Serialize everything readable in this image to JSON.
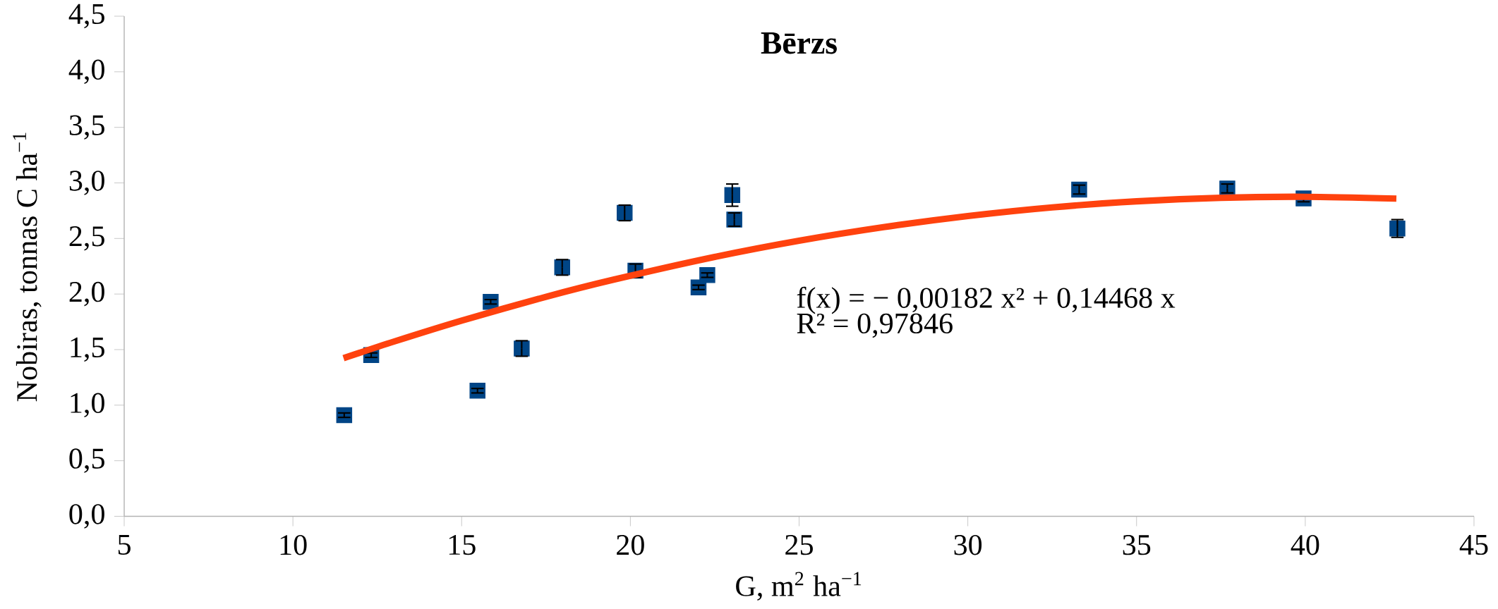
{
  "chart_data": {
    "type": "scatter",
    "title": "Bērzs",
    "xlabel": "G, m$^{2}$ ha$^{−1}$",
    "ylabel": "Nobiras, tonnas C ha$^{−1}$",
    "xlim": [
      5,
      45
    ],
    "xticks": [
      5,
      10,
      15,
      20,
      25,
      30,
      35,
      40,
      45
    ],
    "ylim": [
      0,
      4.5
    ],
    "yticks": [
      {
        "value": 0,
        "label": "0,0"
      },
      {
        "value": 0.5,
        "label": "0,5"
      },
      {
        "value": 1,
        "label": "1,0"
      },
      {
        "value": 1.5,
        "label": "1,5"
      },
      {
        "value": 2,
        "label": "2,0"
      },
      {
        "value": 2.5,
        "label": "2,5"
      },
      {
        "value": 3,
        "label": "3,0"
      },
      {
        "value": 3.5,
        "label": "3,5"
      },
      {
        "value": 4,
        "label": "4,0"
      },
      {
        "value": 4.5,
        "label": "4,5"
      }
    ],
    "marker": "square",
    "series": [
      {
        "color": "#004586",
        "x": [
          11.52,
          12.32,
          15.47,
          15.86,
          16.78,
          17.98,
          19.83,
          20.15,
          22.02,
          22.28,
          23.02,
          23.08,
          33.3,
          37.69,
          39.95,
          42.73
        ],
        "values": [
          0.91,
          1.45,
          1.13,
          1.93,
          1.51,
          2.24,
          2.73,
          2.21,
          2.06,
          2.17,
          2.89,
          2.67,
          2.94,
          2.95,
          2.86,
          2.59
        ],
        "errors": [
          0.02,
          0.02,
          0.02,
          0.02,
          0.07,
          0.07,
          0.07,
          0.06,
          0.02,
          0.02,
          0.1,
          0.06,
          0.04,
          0.04,
          0.03,
          0.08
        ]
      },
      {
        "type": "line",
        "color": "#ff420e",
        "marker": "none",
        "x": [
          11.5,
          13,
          15,
          17.5,
          19.5,
          22.5,
          25,
          27.5,
          30,
          32.5,
          35,
          37.5,
          40,
          42.7
        ],
        "values": [
          1.423,
          1.573,
          1.761,
          1.975,
          2.129,
          2.334,
          2.48,
          2.602,
          2.702,
          2.78,
          2.834,
          2.866,
          2.875,
          2.859
        ]
      }
    ],
    "annotations": [
      "f(x) = − 0,00182 x² + 0,14468 x",
      "R² = 0,97846"
    ]
  }
}
